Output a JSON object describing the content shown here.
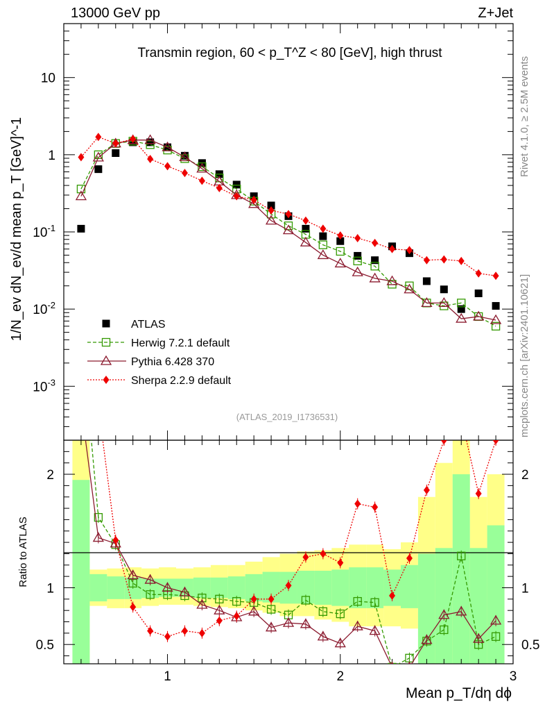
{
  "header": {
    "left": "13000 GeV pp",
    "right": "Z+Jet"
  },
  "side_labels": {
    "rivet": "Rivet 4.1.0, ≥ 2.5M events",
    "mcplots": "mcplots.cern.ch [arXiv:2401.10621]"
  },
  "chart_data": {
    "type": "scatter",
    "title": "Transmin region, 60 < p_T^Z < 80 [GeV], high thrust",
    "analysis_id": "(ATLAS_2019_I1736531)",
    "xlabel": "Mean p_T/dη dϕ",
    "ylabel": "1/N_ev dN_ev/d mean p_T [GeV]^-1",
    "ratio_ylabel": "Ratio to ATLAS",
    "xlim": [
      0.4,
      3.0
    ],
    "ylim": [
      0.0002,
      50
    ],
    "yscale": "log",
    "ratio_ylim": [
      0.33,
      2.3
    ],
    "x_ticks": [
      "1",
      "2",
      "3"
    ],
    "y_ticks": [
      "10^-3",
      "10^-2",
      "10^-1",
      "1",
      "10"
    ],
    "ratio_ticks": [
      "0.5",
      "1",
      "2"
    ],
    "x": [
      0.5,
      0.6,
      0.7,
      0.8,
      0.9,
      1.0,
      1.1,
      1.2,
      1.3,
      1.4,
      1.5,
      1.6,
      1.7,
      1.8,
      1.9,
      2.0,
      2.1,
      2.2,
      2.3,
      2.4,
      2.5,
      2.6,
      2.7,
      2.8,
      2.9
    ],
    "series": [
      {
        "name": "ATLAS",
        "style": "square",
        "color": "#000000",
        "values": [
          0.11,
          0.65,
          1.05,
          1.45,
          1.45,
          1.25,
          0.97,
          0.78,
          0.56,
          0.41,
          0.29,
          0.22,
          0.16,
          0.11,
          0.088,
          0.076,
          0.049,
          0.043,
          0.065,
          0.053,
          0.023,
          0.018,
          0.01,
          0.016,
          0.011
        ]
      },
      {
        "name": "Herwig 7.2.1 default",
        "style": "open-square-dashed",
        "color": "#339900",
        "values": [
          0.36,
          1.0,
          1.4,
          1.5,
          1.35,
          1.15,
          0.89,
          0.7,
          0.5,
          0.36,
          0.25,
          0.17,
          0.12,
          0.093,
          0.068,
          0.056,
          0.042,
          0.036,
          0.021,
          0.02,
          0.012,
          0.011,
          0.012,
          0.008,
          0.006
        ]
      },
      {
        "name": "Pythia 6.428 370",
        "style": "open-triangle-solid",
        "color": "#8b1a2f",
        "values": [
          0.29,
          0.92,
          1.4,
          1.55,
          1.55,
          1.25,
          0.93,
          0.66,
          0.45,
          0.3,
          0.23,
          0.14,
          0.105,
          0.073,
          0.05,
          0.039,
          0.03,
          0.025,
          0.023,
          0.018,
          0.012,
          0.012,
          0.0075,
          0.008,
          0.0072
        ]
      },
      {
        "name": "Sherpa 2.2.9 default",
        "style": "diamond-dotted",
        "color": "#ee0000",
        "values": [
          0.93,
          1.7,
          1.4,
          1.6,
          0.88,
          0.71,
          0.58,
          0.46,
          0.37,
          0.29,
          0.26,
          0.19,
          0.17,
          0.14,
          0.11,
          0.09,
          0.083,
          0.072,
          0.06,
          0.058,
          0.043,
          0.044,
          0.042,
          0.029,
          0.027
        ]
      }
    ],
    "ratio_series": [
      {
        "name": "Herwig 7.2.1 default",
        "values": [
          3.3,
          1.62,
          1.38,
          1.04,
          0.94,
          0.94,
          0.93,
          0.91,
          0.9,
          0.88,
          0.87,
          0.81,
          0.76,
          0.89,
          0.79,
          0.77,
          0.88,
          0.87,
          0.3,
          0.38,
          0.53,
          0.63,
          1.28,
          0.5,
          0.57
        ]
      },
      {
        "name": "Pythia 6.428 370",
        "values": [
          2.6,
          1.44,
          1.39,
          1.11,
          1.07,
          1.0,
          0.96,
          0.85,
          0.8,
          0.74,
          0.79,
          0.65,
          0.69,
          0.68,
          0.57,
          0.51,
          0.66,
          0.62,
          0.3,
          0.3,
          0.54,
          0.76,
          0.79,
          0.55,
          0.71
        ]
      },
      {
        "name": "Sherpa 2.2.9 default",
        "values": [
          8.5,
          2.6,
          1.42,
          0.83,
          0.62,
          0.57,
          0.62,
          0.6,
          0.71,
          0.75,
          0.9,
          0.9,
          1.02,
          1.27,
          1.3,
          1.22,
          1.74,
          1.71,
          0.93,
          1.26,
          1.86,
          2.3,
          2.5,
          1.83,
          2.3
        ]
      }
    ],
    "ratio_bands": {
      "bin_edges": [
        0.45,
        0.55,
        0.65,
        0.75,
        0.85,
        0.95,
        1.05,
        1.15,
        1.25,
        1.35,
        1.45,
        1.55,
        1.65,
        1.75,
        1.85,
        1.95,
        2.05,
        2.15,
        2.25,
        2.35,
        2.45,
        2.55,
        2.65,
        2.75,
        2.85,
        2.95
      ],
      "green": [
        [
          0.3,
          1.95
        ],
        [
          0.88,
          1.12
        ],
        [
          0.9,
          1.1
        ],
        [
          0.9,
          1.09
        ],
        [
          0.91,
          1.08
        ],
        [
          0.92,
          1.08
        ],
        [
          0.92,
          1.08
        ],
        [
          0.91,
          1.09
        ],
        [
          0.91,
          1.09
        ],
        [
          0.9,
          1.1
        ],
        [
          0.88,
          1.12
        ],
        [
          0.87,
          1.14
        ],
        [
          0.86,
          1.14
        ],
        [
          0.86,
          1.15
        ],
        [
          0.85,
          1.15
        ],
        [
          0.84,
          1.16
        ],
        [
          0.82,
          1.18
        ],
        [
          0.82,
          1.18
        ],
        [
          0.84,
          1.16
        ],
        [
          0.82,
          1.2
        ],
        [
          0.3,
          1.3
        ],
        [
          0.3,
          1.35
        ],
        [
          0.3,
          2.0
        ],
        [
          0.3,
          1.35
        ],
        [
          0.3,
          1.55
        ]
      ],
      "yellow": [
        [
          0.3,
          2.4
        ],
        [
          0.84,
          1.16
        ],
        [
          0.82,
          1.17
        ],
        [
          0.82,
          1.18
        ],
        [
          0.84,
          1.17
        ],
        [
          0.85,
          1.18
        ],
        [
          0.85,
          1.17
        ],
        [
          0.84,
          1.18
        ],
        [
          0.83,
          1.2
        ],
        [
          0.82,
          1.2
        ],
        [
          0.8,
          1.23
        ],
        [
          0.78,
          1.27
        ],
        [
          0.75,
          1.3
        ],
        [
          0.75,
          1.32
        ],
        [
          0.72,
          1.33
        ],
        [
          0.7,
          1.35
        ],
        [
          0.66,
          1.38
        ],
        [
          0.66,
          1.38
        ],
        [
          0.66,
          1.34
        ],
        [
          0.64,
          1.4
        ],
        [
          0.3,
          1.8
        ],
        [
          0.3,
          2.1
        ],
        [
          0.3,
          2.5
        ],
        [
          0.3,
          1.8
        ],
        [
          0.3,
          2.0
        ]
      ]
    },
    "legend_position": "lower-left"
  }
}
